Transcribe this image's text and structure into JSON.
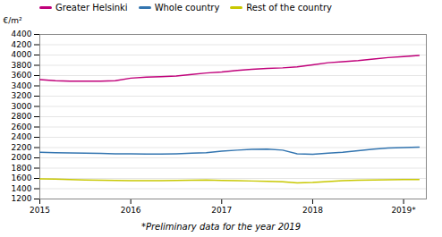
{
  "chart_data": {
    "type": "line",
    "ylabel": "€/m²",
    "caption": "*Preliminary data for the year 2019",
    "x": [
      2015.0,
      2015.17,
      2015.33,
      2015.5,
      2015.67,
      2015.83,
      2016.0,
      2016.17,
      2016.33,
      2016.5,
      2016.67,
      2016.83,
      2017.0,
      2017.17,
      2017.33,
      2017.5,
      2017.67,
      2017.83,
      2018.0,
      2018.17,
      2018.33,
      2018.5,
      2018.67,
      2018.83,
      2019.0,
      2019.17
    ],
    "series": [
      {
        "name": "Greater Helsinki",
        "color": "#c0007a",
        "values": [
          3520,
          3500,
          3490,
          3490,
          3490,
          3500,
          3550,
          3570,
          3580,
          3590,
          3620,
          3650,
          3670,
          3700,
          3720,
          3740,
          3750,
          3770,
          3810,
          3850,
          3870,
          3890,
          3920,
          3950,
          3970,
          3990
        ]
      },
      {
        "name": "Whole country",
        "color": "#3375b0",
        "values": [
          2110,
          2100,
          2095,
          2090,
          2085,
          2080,
          2080,
          2075,
          2075,
          2080,
          2090,
          2100,
          2130,
          2150,
          2165,
          2170,
          2150,
          2080,
          2070,
          2090,
          2110,
          2140,
          2170,
          2190,
          2200,
          2210
        ]
      },
      {
        "name": "Rest of the country",
        "color": "#c8c800",
        "values": [
          1590,
          1585,
          1578,
          1570,
          1565,
          1560,
          1558,
          1555,
          1558,
          1560,
          1565,
          1568,
          1562,
          1558,
          1550,
          1545,
          1535,
          1515,
          1520,
          1540,
          1555,
          1565,
          1570,
          1575,
          1578,
          1580
        ]
      }
    ],
    "xlim": [
      2015.0,
      2019.25
    ],
    "xticks": [
      2015,
      2016,
      2017,
      2018,
      {
        "value": 2019,
        "label": "2019*"
      }
    ],
    "ylim": [
      1200,
      4400
    ],
    "yticks": [
      1200,
      1400,
      1600,
      1800,
      2000,
      2200,
      2400,
      2600,
      2800,
      3000,
      3200,
      3400,
      3600,
      3800,
      4000,
      4200,
      4400
    ],
    "grid": true,
    "legend": "upper left"
  }
}
